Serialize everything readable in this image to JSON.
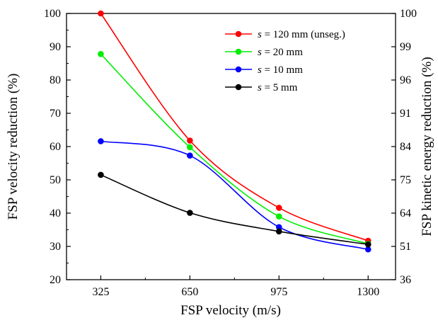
{
  "chart_data": {
    "type": "line",
    "title": "",
    "xlabel": "FSP velocity (m/s)",
    "ylabel": "FSP velocity reduction (%)",
    "y2label": "FSP kinetic energy reduction (%)",
    "x": [
      325,
      650,
      975,
      1300
    ],
    "xlim": [
      200,
      1400
    ],
    "ylim": [
      20,
      100
    ],
    "yticks": [
      "20",
      "30",
      "40",
      "50",
      "60",
      "70",
      "80",
      "90",
      "100"
    ],
    "y2ticks": [
      "36",
      "51",
      "64",
      "75",
      "84",
      "91",
      "96",
      "99",
      "100"
    ],
    "xticks": [
      "325",
      "650",
      "975",
      "1300"
    ],
    "legend_position": "top-right",
    "grid": false,
    "series": [
      {
        "prefix": "s",
        "name": " = 120 mm (unseg.)",
        "color": "#ff0000",
        "values": [
          100,
          61.8,
          41.6,
          31.7
        ]
      },
      {
        "prefix": "s",
        "name": " = 20 mm",
        "color": "#00ee00",
        "values": [
          87.8,
          59.8,
          39.0,
          30.8
        ]
      },
      {
        "prefix": "s",
        "name": " = 10 mm",
        "color": "#0000ff",
        "values": [
          61.6,
          57.3,
          35.8,
          29.1
        ]
      },
      {
        "prefix": "s",
        "name": " = 5 mm",
        "color": "#000000",
        "values": [
          51.5,
          40.1,
          34.5,
          30.6
        ]
      }
    ]
  }
}
